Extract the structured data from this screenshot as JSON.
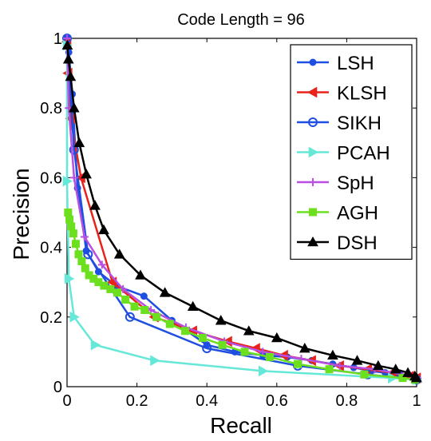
{
  "chart_data": {
    "type": "line",
    "title": "Code Length = 96",
    "xlabel": "Recall",
    "ylabel": "Precision",
    "xlim": [
      0,
      1
    ],
    "ylim": [
      0,
      1
    ],
    "xticks": [
      0,
      0.2,
      0.4,
      0.6,
      0.8,
      1
    ],
    "yticks": [
      0,
      0.2,
      0.4,
      0.6,
      0.8,
      1
    ],
    "xtick_labels": [
      "0",
      "0.2",
      "0.4",
      "0.6",
      "0.8",
      "1"
    ],
    "ytick_labels": [
      "0",
      "0.2",
      "0.4",
      "0.6",
      "0.8",
      "1"
    ],
    "grid": false,
    "legend_position": "top-right",
    "series": [
      {
        "name": "LSH",
        "color": "#1f4fe0",
        "marker": "dot",
        "x": [
          0,
          0.005,
          0.015,
          0.03,
          0.055,
          0.09,
          0.14,
          0.22,
          0.3,
          0.4,
          0.48,
          0.56,
          0.63,
          0.7,
          0.76,
          0.82,
          0.87,
          0.91,
          0.95,
          0.98,
          1
        ],
        "y": [
          1,
          0.96,
          0.84,
          0.57,
          0.39,
          0.33,
          0.29,
          0.26,
          0.19,
          0.12,
          0.1,
          0.09,
          0.085,
          0.075,
          0.065,
          0.055,
          0.045,
          0.04,
          0.035,
          0.03,
          0.025
        ]
      },
      {
        "name": "KLSH",
        "color": "#e8231a",
        "marker": "triangle-left",
        "x": [
          0,
          0.003,
          0.01,
          0.04,
          0.13,
          0.25,
          0.36,
          0.46,
          0.54,
          0.62,
          0.7,
          0.78,
          0.86,
          0.93,
          0.98,
          1
        ],
        "y": [
          0.99,
          0.9,
          0.77,
          0.6,
          0.3,
          0.2,
          0.16,
          0.13,
          0.11,
          0.09,
          0.075,
          0.06,
          0.05,
          0.04,
          0.03,
          0.025
        ]
      },
      {
        "name": "SIKH",
        "color": "#1f4fe0",
        "marker": "circle-open",
        "x": [
          0,
          0.02,
          0.06,
          0.18,
          0.4,
          0.66,
          0.86,
          1
        ],
        "y": [
          1,
          0.68,
          0.38,
          0.2,
          0.11,
          0.06,
          0.035,
          0.02
        ]
      },
      {
        "name": "PCAH",
        "color": "#66e8d8",
        "marker": "triangle-right",
        "x": [
          0,
          0.0,
          0.005,
          0.02,
          0.08,
          0.25,
          0.56,
          0.93,
          1
        ],
        "y": [
          0.98,
          0.59,
          0.31,
          0.2,
          0.12,
          0.075,
          0.045,
          0.025,
          0.02
        ]
      },
      {
        "name": "SpH",
        "color": "#b84fe0",
        "marker": "plus",
        "x": [
          0,
          0.005,
          0.02,
          0.05,
          0.1,
          0.16,
          0.24,
          0.34,
          0.45,
          0.56,
          0.67,
          0.78,
          0.88,
          0.96,
          1
        ],
        "y": [
          1,
          0.8,
          0.6,
          0.43,
          0.35,
          0.28,
          0.22,
          0.17,
          0.13,
          0.1,
          0.08,
          0.06,
          0.05,
          0.035,
          0.025
        ]
      },
      {
        "name": "AGH",
        "color": "#6ce01f",
        "marker": "square",
        "x": [
          0.003,
          0.007,
          0.012,
          0.018,
          0.025,
          0.033,
          0.042,
          0.052,
          0.063,
          0.076,
          0.09,
          0.106,
          0.124,
          0.144,
          0.167,
          0.193,
          0.222,
          0.256,
          0.294,
          0.338,
          0.388,
          0.444,
          0.508,
          0.58,
          0.66,
          0.75,
          0.85,
          0.96,
          0.995
        ],
        "y": [
          0.5,
          0.48,
          0.46,
          0.44,
          0.41,
          0.38,
          0.36,
          0.34,
          0.32,
          0.31,
          0.3,
          0.29,
          0.28,
          0.27,
          0.25,
          0.23,
          0.22,
          0.2,
          0.18,
          0.16,
          0.14,
          0.12,
          0.1,
          0.085,
          0.065,
          0.05,
          0.035,
          0.025,
          0.02
        ]
      },
      {
        "name": "DSH",
        "color": "#000000",
        "marker": "triangle-up",
        "x": [
          0.001,
          0.004,
          0.01,
          0.02,
          0.035,
          0.055,
          0.08,
          0.105,
          0.15,
          0.21,
          0.28,
          0.36,
          0.44,
          0.52,
          0.6,
          0.68,
          0.76,
          0.83,
          0.89,
          0.94,
          0.975,
          0.995,
          1
        ],
        "y": [
          0.98,
          0.94,
          0.89,
          0.8,
          0.7,
          0.61,
          0.52,
          0.45,
          0.38,
          0.32,
          0.27,
          0.23,
          0.19,
          0.16,
          0.14,
          0.11,
          0.09,
          0.075,
          0.06,
          0.05,
          0.04,
          0.03,
          0.025
        ]
      }
    ]
  }
}
